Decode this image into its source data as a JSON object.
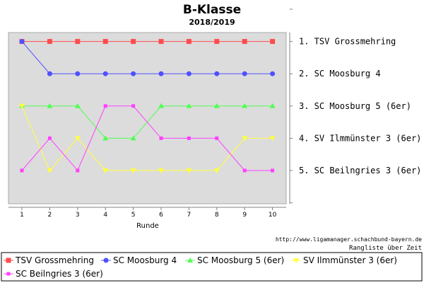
{
  "chart_data": {
    "type": "line",
    "title": "B-Klasse",
    "subtitle": "2018/2019",
    "xlabel": "Runde",
    "x": [
      1,
      2,
      3,
      4,
      5,
      6,
      7,
      8,
      9,
      10
    ],
    "ylim": [
      6,
      0
    ],
    "y_inverted": true,
    "grid": false,
    "legend_placement": "bottom",
    "plot_background": "#dcdcdc",
    "rank_labels": [
      "1. TSV Grossmehring",
      "2. SC Moosburg 4",
      "3. SC Moosburg 5 (6er)",
      "4. SV Ilmmünster 3 (6er)",
      "5. SC Beilngries 3 (6er)"
    ],
    "series": [
      {
        "name": "TSV Grossmehring",
        "color": "#ff4c4c",
        "marker": "square",
        "values": [
          1,
          1,
          1,
          1,
          1,
          1,
          1,
          1,
          1,
          1
        ]
      },
      {
        "name": "SC Moosburg 4",
        "color": "#5050ff",
        "marker": "circle",
        "values": [
          1,
          2,
          2,
          2,
          2,
          2,
          2,
          2,
          2,
          2
        ]
      },
      {
        "name": "SC Moosburg 5 (6er)",
        "color": "#50ff50",
        "marker": "triangle-up",
        "values": [
          3,
          3,
          3,
          4,
          4,
          3,
          3,
          3,
          3,
          3
        ]
      },
      {
        "name": "SV Ilmmünster 3 (6er)",
        "color": "#ffff40",
        "marker": "triangle-down",
        "values": [
          3,
          5,
          4,
          5,
          5,
          5,
          5,
          5,
          4,
          4
        ]
      },
      {
        "name": "SC Beilngries 3 (6er)",
        "color": "#ff40ff",
        "marker": "small-square",
        "values": [
          5,
          4,
          5,
          3,
          3,
          4,
          4,
          4,
          5,
          5
        ]
      }
    ],
    "source": "http://www.ligamanager.schachbund-bayern.de",
    "note": "Rangliste über Zeit"
  }
}
